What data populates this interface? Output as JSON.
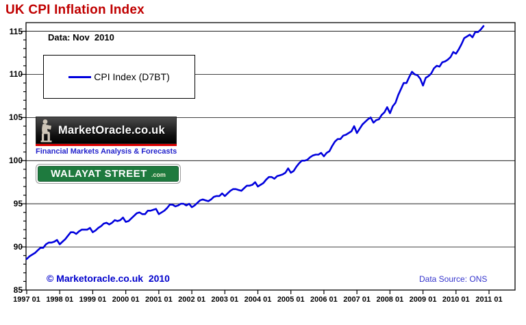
{
  "page": {
    "title": "UK CPI Inflation Index",
    "title_color": "#c00000",
    "data_label": "Data: Nov  2010",
    "copyright": "© Marketoracle.co.uk  2010",
    "data_source": "Data Source: ONS"
  },
  "legend": {
    "label": "CPI Index (D7BT)",
    "line_color": "#0000dd"
  },
  "logos": {
    "marketoracle": {
      "title": "MarketOracle.co.uk",
      "tagline": "Financial Markets Analysis & Forecasts",
      "bar_color": "#141414",
      "stripe_color": "#dd0000",
      "tagline_color": "#2222cc"
    },
    "walayat": {
      "name": "WALAYAT STREET",
      "suffix": ".com",
      "sign_color": "#1e7a3e"
    }
  },
  "chart_data": {
    "type": "line",
    "title": "UK CPI Inflation Index",
    "xlabel": "",
    "ylabel": "",
    "grid": true,
    "legend_position": "top-left",
    "ylim": [
      85,
      116
    ],
    "y_ticks": [
      85,
      90,
      95,
      100,
      105,
      110,
      115
    ],
    "y_minor_tick_step": 1,
    "x_tick_labels": [
      "1997 01",
      "1998 01",
      "1999 01",
      "2000 01",
      "2001 01",
      "2002 01",
      "2003 01",
      "2004 01",
      "2005 01",
      "2006 01",
      "2007 01",
      "2008 01",
      "2009 01",
      "2010 01",
      "2011 01"
    ],
    "line_color": "#0000dd",
    "series": [
      {
        "name": "CPI Index (D7BT)",
        "x_start": "1997-01",
        "x_end": "2010-11",
        "frequency": "monthly",
        "values": [
          88.6,
          88.9,
          89.1,
          89.3,
          89.6,
          89.9,
          89.9,
          90.3,
          90.5,
          90.5,
          90.6,
          90.8,
          90.3,
          90.6,
          90.9,
          91.3,
          91.7,
          91.7,
          91.5,
          91.8,
          92.0,
          92.0,
          92.0,
          92.2,
          91.7,
          91.9,
          92.2,
          92.4,
          92.7,
          92.8,
          92.6,
          92.8,
          93.1,
          93.0,
          93.1,
          93.4,
          92.9,
          93.0,
          93.3,
          93.6,
          93.9,
          94.0,
          93.8,
          93.8,
          94.2,
          94.2,
          94.3,
          94.4,
          93.8,
          94.0,
          94.2,
          94.5,
          94.9,
          94.9,
          94.7,
          94.8,
          95.0,
          95.0,
          94.8,
          95.0,
          94.6,
          94.8,
          95.1,
          95.4,
          95.5,
          95.4,
          95.3,
          95.5,
          95.8,
          95.9,
          95.9,
          96.2,
          95.9,
          96.2,
          96.5,
          96.7,
          96.7,
          96.6,
          96.5,
          96.8,
          97.1,
          97.1,
          97.2,
          97.5,
          97.0,
          97.2,
          97.4,
          97.8,
          98.1,
          98.1,
          97.9,
          98.2,
          98.3,
          98.4,
          98.6,
          99.1,
          98.6,
          98.8,
          99.3,
          99.7,
          100.0,
          100.0,
          100.1,
          100.4,
          100.6,
          100.7,
          100.7,
          100.9,
          100.5,
          100.9,
          101.1,
          101.7,
          102.2,
          102.5,
          102.5,
          102.9,
          103.0,
          103.2,
          103.4,
          104.0,
          103.2,
          103.7,
          104.2,
          104.5,
          104.8,
          105.0,
          104.4,
          104.7,
          104.8,
          105.3,
          105.6,
          106.2,
          105.5,
          106.3,
          106.7,
          107.6,
          108.3,
          109.0,
          109.0,
          109.7,
          110.3,
          110.0,
          109.9,
          109.5,
          108.7,
          109.6,
          109.8,
          110.1,
          110.7,
          111.0,
          110.9,
          111.4,
          111.5,
          111.7,
          112.0,
          112.6,
          112.4,
          112.9,
          113.5,
          114.2,
          114.4,
          114.6,
          114.3,
          114.9,
          114.9,
          115.2,
          115.6
        ]
      }
    ]
  }
}
